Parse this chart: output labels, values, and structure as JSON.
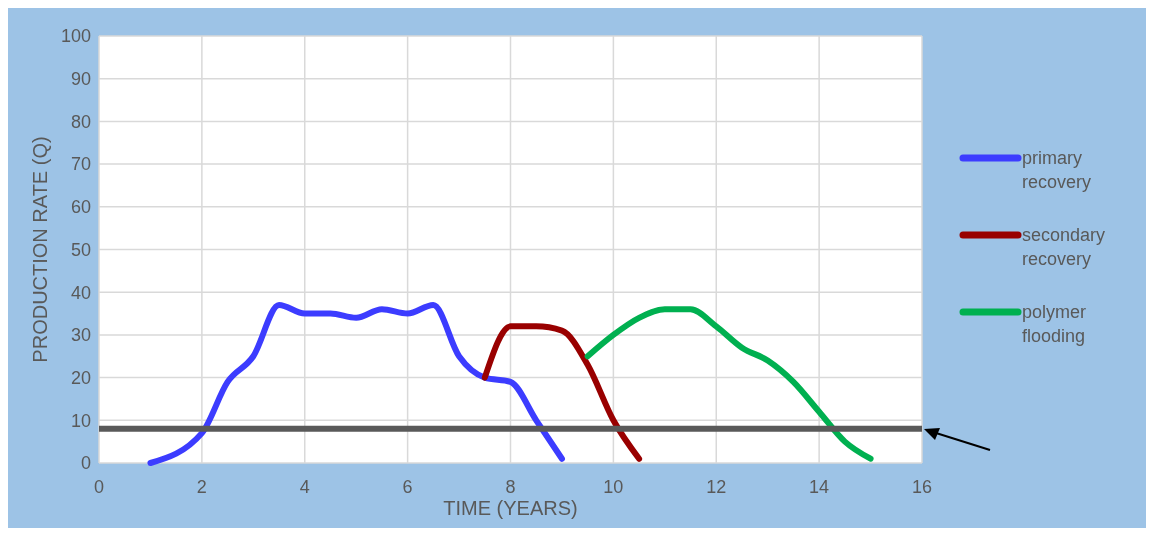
{
  "chart_data": {
    "type": "line",
    "xlabel": "TIME (YEARS)",
    "ylabel": "PRODUCTION RATE (Q)",
    "xlim": [
      0,
      16
    ],
    "xticks": [
      0,
      2,
      4,
      6,
      8,
      10,
      12,
      14,
      16
    ],
    "ylim": [
      0,
      100
    ],
    "yticks": [
      0,
      10,
      20,
      30,
      40,
      50,
      60,
      70,
      80,
      90,
      100
    ],
    "grid": true,
    "legend": "right",
    "marker": "none",
    "line_style": "solid",
    "series": [
      {
        "name": "primary recovery",
        "color": "#3c3cff",
        "x": [
          1,
          2,
          2.5,
          3,
          3.5,
          4,
          4.5,
          5,
          5.5,
          6,
          6.5,
          7,
          7.5,
          8,
          8.5,
          9
        ],
        "values": [
          0,
          7,
          19,
          25,
          37,
          35,
          35,
          34,
          36,
          35,
          37,
          25,
          20,
          19,
          10,
          1
        ]
      },
      {
        "name": "secondary recovery",
        "color": "#990000",
        "x": [
          7.5,
          8,
          8.5,
          9,
          9.5,
          10,
          10.5
        ],
        "values": [
          20,
          32,
          32,
          31,
          23,
          10,
          1
        ]
      },
      {
        "name": "polymer flooding",
        "color": "#00b050",
        "x": [
          9.5,
          10,
          10.5,
          11,
          11.5,
          12,
          12.5,
          13,
          13.5,
          14,
          14.5,
          15
        ],
        "values": [
          25,
          30,
          34,
          36,
          36,
          32,
          27,
          24,
          19,
          12,
          5,
          1
        ]
      }
    ],
    "ref_lines": [
      {
        "axis": "y",
        "value": 8,
        "color": "#595959",
        "line_style": "solid"
      }
    ]
  }
}
